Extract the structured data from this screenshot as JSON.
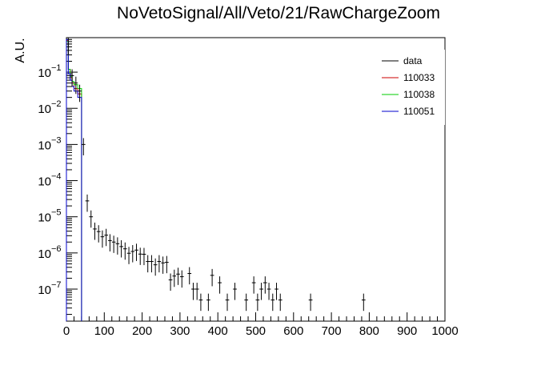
{
  "chart_data": {
    "type": "line",
    "title": "NoVetoSignal/All/Veto/21/RawChargeZoom",
    "xlabel": "",
    "ylabel": "A.U.",
    "xlim": [
      0,
      1000
    ],
    "ylim": [
      1.3e-08,
      0.9
    ],
    "y_scale": "log",
    "grid": false,
    "legend_position": "top-right",
    "x_ticks": [
      0,
      100,
      200,
      300,
      400,
      500,
      600,
      700,
      800,
      900,
      1000
    ],
    "x_tick_labels": [
      "0",
      "100",
      "200",
      "300",
      "400",
      "500",
      "600",
      "700",
      "800",
      "900",
      "1000"
    ],
    "y_ticks": [
      1e-07,
      1e-06,
      1e-05,
      0.0001,
      0.001,
      0.01,
      0.1
    ],
    "y_tick_bases": [
      "10",
      "10",
      "10",
      "10",
      "10",
      "10",
      "10"
    ],
    "y_tick_exponents": [
      "−7",
      "−6",
      "−5",
      "−4",
      "−3",
      "−2",
      "−1"
    ],
    "series": [
      {
        "name": "data",
        "color": "#000000",
        "style": "points",
        "bin_width": 10,
        "x": [
          0,
          10,
          20,
          30,
          40,
          50,
          60,
          70,
          80,
          90,
          100,
          110,
          120,
          130,
          140,
          150,
          160,
          170,
          180,
          190,
          200,
          210,
          220,
          230,
          240,
          250,
          260,
          270,
          280,
          290,
          300,
          320,
          330,
          340,
          350,
          370,
          380,
          400,
          420,
          440,
          470,
          490,
          500,
          510,
          520,
          530,
          540,
          550,
          560,
          640,
          780
        ],
        "y": [
          0.6,
          0.08,
          0.05,
          0.03,
          0.001,
          2.75e-05,
          1e-05,
          4.6e-06,
          3.9e-06,
          2.8e-06,
          3.1e-06,
          2.2e-06,
          2e-06,
          1.8e-06,
          1.5e-06,
          1.3e-06,
          9.8e-07,
          1.1e-06,
          1.2e-06,
          9.3e-07,
          9.2e-07,
          5.8e-07,
          5.8e-07,
          4.7e-07,
          5.8e-07,
          5.3e-07,
          5.5e-07,
          1.8e-07,
          2.3e-07,
          2.6e-07,
          2.2e-07,
          2.7e-07,
          1e-07,
          1e-07,
          5e-08,
          5e-08,
          2.4e-07,
          1.5e-07,
          5e-08,
          1e-07,
          5e-08,
          1.5e-07,
          5e-08,
          1e-07,
          1.5e-07,
          1e-07,
          5e-08,
          1e-07,
          5e-08,
          5e-08,
          5e-08
        ]
      },
      {
        "name": "110033",
        "color": "#cc0000",
        "style": "step",
        "bin_edges": [
          0,
          5,
          10,
          15,
          20,
          30,
          40
        ],
        "values": [
          0.75,
          0.12,
          0.07,
          0.05,
          0.035,
          0.025
        ]
      },
      {
        "name": "110038",
        "color": "#00cc00",
        "style": "step",
        "bin_edges": [
          0,
          5,
          10,
          15,
          20,
          30,
          40
        ],
        "values": [
          0.7,
          0.12,
          0.075,
          0.055,
          0.045,
          0.035
        ]
      },
      {
        "name": "110051",
        "color": "#0000cc",
        "style": "step",
        "bin_edges": [
          0,
          5,
          10,
          15,
          20,
          30,
          40
        ],
        "values": [
          0.8,
          0.09,
          0.06,
          0.04,
          0.03,
          0.02
        ]
      }
    ]
  }
}
